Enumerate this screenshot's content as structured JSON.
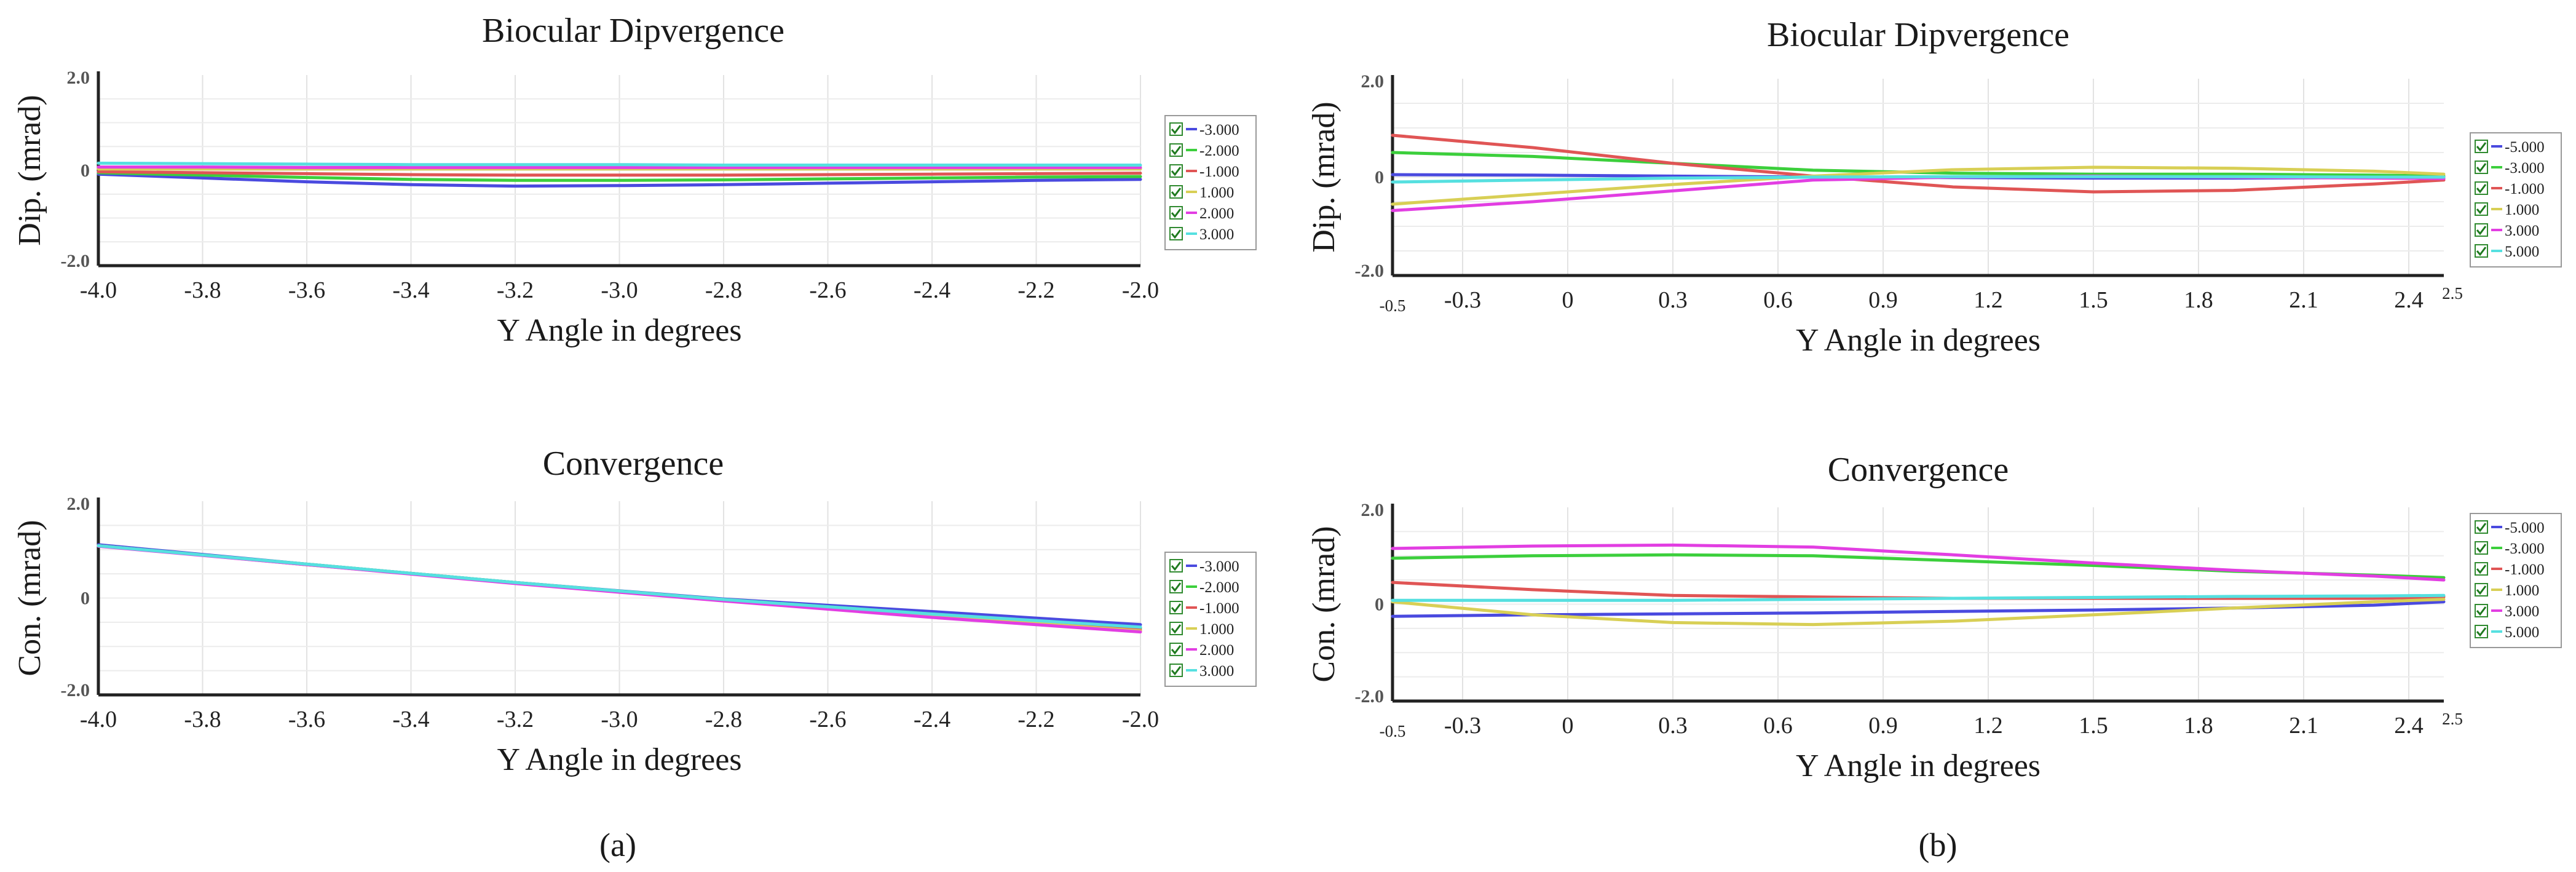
{
  "captions": {
    "left": "(a)",
    "right": "(b)"
  },
  "chart_data": [
    {
      "panel": "a-top",
      "type": "line",
      "title": "Biocular Dipvergence",
      "xlabel": "Y Angle in degrees",
      "ylabel": "Dip. (mrad)",
      "xlim": [
        -4.0,
        -2.0
      ],
      "ylim": [
        -2.0,
        2.0
      ],
      "x_ticks": [
        "-4.0",
        "-3.8",
        "-3.6",
        "-3.4",
        "-3.2",
        "-3.0",
        "-2.8",
        "-2.6",
        "-2.4",
        "-2.2",
        "-2.0"
      ],
      "y_ticks": [
        "2.0",
        "0",
        "-2.0"
      ],
      "x": [
        -4.0,
        -3.8,
        -3.6,
        -3.4,
        -3.2,
        -3.0,
        -2.8,
        -2.6,
        -2.4,
        -2.2,
        -2.0
      ],
      "series": [
        {
          "name": "-3.000",
          "color": "#4a4adf",
          "values": [
            -0.08,
            -0.16,
            -0.24,
            -0.3,
            -0.33,
            -0.32,
            -0.3,
            -0.27,
            -0.24,
            -0.21,
            -0.19
          ]
        },
        {
          "name": "-2.000",
          "color": "#3ccf3c",
          "values": [
            -0.05,
            -0.1,
            -0.15,
            -0.19,
            -0.21,
            -0.21,
            -0.2,
            -0.18,
            -0.16,
            -0.14,
            -0.13
          ]
        },
        {
          "name": "-1.000",
          "color": "#e05555",
          "values": [
            -0.03,
            -0.05,
            -0.07,
            -0.09,
            -0.1,
            -0.1,
            -0.1,
            -0.09,
            -0.08,
            -0.07,
            -0.06
          ]
        },
        {
          "name": "1.000",
          "color": "#d8cf55",
          "values": [
            0.03,
            0.03,
            0.03,
            0.03,
            0.03,
            0.03,
            0.03,
            0.03,
            0.03,
            0.03,
            0.03
          ]
        },
        {
          "name": "2.000",
          "color": "#e23ee2",
          "values": [
            0.07,
            0.07,
            0.06,
            0.06,
            0.06,
            0.06,
            0.06,
            0.06,
            0.06,
            0.06,
            0.06
          ]
        },
        {
          "name": "3.000",
          "color": "#56e0e0",
          "values": [
            0.15,
            0.14,
            0.13,
            0.12,
            0.12,
            0.12,
            0.11,
            0.11,
            0.11,
            0.11,
            0.11
          ]
        }
      ]
    },
    {
      "panel": "a-bottom",
      "type": "line",
      "title": "Convergence",
      "xlabel": "Y Angle in degrees",
      "ylabel": "Con. (mrad)",
      "xlim": [
        -4.0,
        -2.0
      ],
      "ylim": [
        -2.0,
        2.0
      ],
      "x_ticks": [
        "-4.0",
        "-3.8",
        "-3.6",
        "-3.4",
        "-3.2",
        "-3.0",
        "-2.8",
        "-2.6",
        "-2.4",
        "-2.2",
        "-2.0"
      ],
      "y_ticks": [
        "2.0",
        "0",
        "-2.0"
      ],
      "x": [
        -4.0,
        -3.6,
        -3.2,
        -2.8,
        -2.4,
        -2.0
      ],
      "series": [
        {
          "name": "-3.000",
          "color": "#4a4adf",
          "values": [
            1.1,
            0.7,
            0.32,
            -0.02,
            -0.28,
            -0.55
          ]
        },
        {
          "name": "-2.000",
          "color": "#3ccf3c",
          "values": [
            1.08,
            0.7,
            0.32,
            -0.03,
            -0.33,
            -0.62
          ]
        },
        {
          "name": "-1.000",
          "color": "#e05555",
          "values": [
            1.08,
            0.69,
            0.31,
            -0.05,
            -0.36,
            -0.66
          ]
        },
        {
          "name": "1.000",
          "color": "#d8cf55",
          "values": [
            1.08,
            0.69,
            0.31,
            -0.05,
            -0.37,
            -0.68
          ]
        },
        {
          "name": "2.000",
          "color": "#e23ee2",
          "values": [
            1.07,
            0.69,
            0.3,
            -0.06,
            -0.4,
            -0.7
          ]
        },
        {
          "name": "3.000",
          "color": "#56e0e0",
          "values": [
            1.08,
            0.7,
            0.32,
            -0.03,
            -0.33,
            -0.6
          ]
        }
      ]
    },
    {
      "panel": "b-top",
      "type": "line",
      "title": "Biocular Dipvergence",
      "xlabel": "Y Angle in degrees",
      "ylabel": "Dip. (mrad)",
      "xlim": [
        -0.5,
        2.5
      ],
      "ylim": [
        -2.0,
        2.0
      ],
      "x_ticks": [
        "-0.3",
        "0",
        "0.3",
        "0.6",
        "0.9",
        "1.2",
        "1.5",
        "1.8",
        "2.1",
        "2.4"
      ],
      "x_end_labels": [
        "-0.5",
        "2.5"
      ],
      "y_ticks": [
        "2.0",
        "0",
        "-2.0"
      ],
      "x": [
        -0.5,
        -0.1,
        0.3,
        0.7,
        1.1,
        1.5,
        1.9,
        2.3,
        2.5
      ],
      "series": [
        {
          "name": "-5.000",
          "color": "#4a4adf",
          "values": [
            0.05,
            0.04,
            0.02,
            0.0,
            -0.01,
            -0.02,
            -0.02,
            -0.01,
            -0.02
          ]
        },
        {
          "name": "-3.000",
          "color": "#3ccf3c",
          "values": [
            0.5,
            0.42,
            0.28,
            0.14,
            0.08,
            0.06,
            0.06,
            0.04,
            0.02
          ]
        },
        {
          "name": "-1.000",
          "color": "#e05555",
          "values": [
            0.85,
            0.6,
            0.28,
            0.02,
            -0.2,
            -0.3,
            -0.27,
            -0.14,
            -0.06
          ]
        },
        {
          "name": "1.000",
          "color": "#d8cf55",
          "values": [
            -0.55,
            -0.35,
            -0.15,
            0.02,
            0.15,
            0.2,
            0.18,
            0.12,
            0.06
          ]
        },
        {
          "name": "3.000",
          "color": "#e23ee2",
          "values": [
            -0.68,
            -0.5,
            -0.28,
            -0.06,
            0.0,
            0.02,
            0.0,
            -0.02,
            -0.03
          ]
        },
        {
          "name": "5.000",
          "color": "#56e0e0",
          "values": [
            -0.1,
            -0.06,
            -0.02,
            0.0,
            0.01,
            0.01,
            0.01,
            0.0,
            0.0
          ]
        }
      ]
    },
    {
      "panel": "b-bottom",
      "type": "line",
      "title": "Convergence",
      "xlabel": "Y Angle in degrees",
      "ylabel": "Con. (mrad)",
      "xlim": [
        -0.5,
        2.5
      ],
      "ylim": [
        -2.0,
        2.0
      ],
      "x_ticks": [
        "-0.3",
        "0",
        "0.3",
        "0.6",
        "0.9",
        "1.2",
        "1.5",
        "1.8",
        "2.1",
        "2.4"
      ],
      "x_end_labels": [
        "-0.5",
        "2.5"
      ],
      "y_ticks": [
        "2.0",
        "0",
        "-2.0"
      ],
      "x": [
        -0.5,
        -0.1,
        0.3,
        0.7,
        1.1,
        1.5,
        1.9,
        2.3,
        2.5
      ],
      "series": [
        {
          "name": "-5.000",
          "color": "#4a4adf",
          "values": [
            -0.25,
            -0.22,
            -0.2,
            -0.18,
            -0.15,
            -0.12,
            -0.08,
            -0.02,
            0.05
          ]
        },
        {
          "name": "-3.000",
          "color": "#3ccf3c",
          "values": [
            0.95,
            1.0,
            1.02,
            1.0,
            0.9,
            0.8,
            0.68,
            0.6,
            0.55
          ]
        },
        {
          "name": "-1.000",
          "color": "#e05555",
          "values": [
            0.45,
            0.3,
            0.18,
            0.15,
            0.12,
            0.12,
            0.12,
            0.12,
            0.15
          ]
        },
        {
          "name": "1.000",
          "color": "#d8cf55",
          "values": [
            0.05,
            -0.22,
            -0.38,
            -0.42,
            -0.35,
            -0.22,
            -0.08,
            0.05,
            0.1
          ]
        },
        {
          "name": "3.000",
          "color": "#e23ee2",
          "values": [
            1.15,
            1.2,
            1.22,
            1.18,
            1.02,
            0.85,
            0.7,
            0.58,
            0.5
          ]
        },
        {
          "name": "5.000",
          "color": "#56e0e0",
          "values": [
            0.08,
            0.08,
            0.08,
            0.1,
            0.12,
            0.14,
            0.16,
            0.17,
            0.18
          ]
        }
      ]
    }
  ]
}
